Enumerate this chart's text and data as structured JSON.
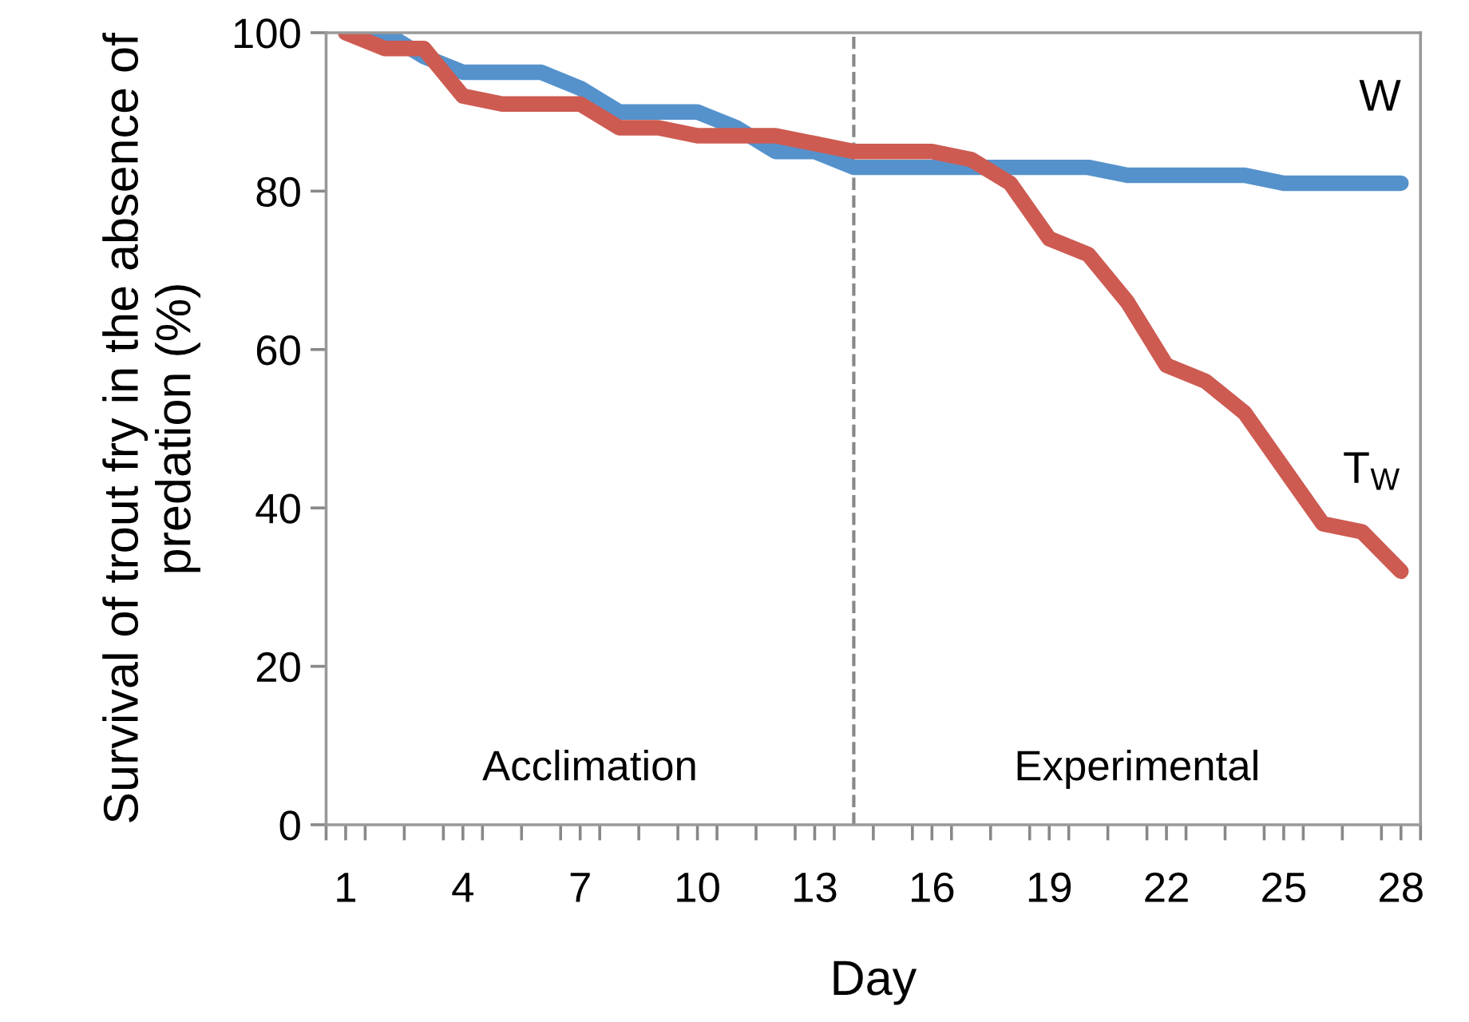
{
  "chart_data": {
    "type": "line",
    "xlabel": "Day",
    "ylabel": "Survival of trout fry in the absence of predation (%)",
    "x": [
      1,
      2,
      3,
      4,
      5,
      6,
      7,
      8,
      9,
      10,
      11,
      12,
      13,
      14,
      15,
      16,
      17,
      18,
      19,
      20,
      21,
      22,
      23,
      24,
      25,
      26,
      27,
      28
    ],
    "series": [
      {
        "name": "W",
        "color": "#5592cc",
        "values": [
          100,
          100,
          97,
          95,
          95,
          95,
          93,
          90,
          90,
          90,
          88,
          85,
          85,
          83,
          83,
          83,
          83,
          83,
          83,
          83,
          82,
          82,
          82,
          82,
          81,
          81,
          81,
          81
        ]
      },
      {
        "name": "T$_{W}$",
        "color": "#cd5b52",
        "values": [
          100,
          98,
          98,
          92,
          91,
          91,
          91,
          88,
          88,
          87,
          87,
          87,
          86,
          85,
          85,
          85,
          84,
          81,
          74,
          72,
          66,
          58,
          56,
          52,
          45,
          38,
          37,
          32
        ]
      }
    ],
    "xlim": [
      0.5,
      28.5
    ],
    "xticks": [
      {
        "value": 0.5,
        "label": null
      },
      1,
      {
        "value": 1.5,
        "label": null
      },
      {
        "value": 2.5,
        "label": null
      },
      {
        "value": 3.5,
        "label": null
      },
      4,
      {
        "value": 4.5,
        "label": null
      },
      {
        "value": 5.5,
        "label": null
      },
      {
        "value": 6.5,
        "label": null
      },
      7,
      {
        "value": 7.5,
        "label": null
      },
      {
        "value": 8.5,
        "label": null
      },
      {
        "value": 9.5,
        "label": null
      },
      10,
      {
        "value": 10.5,
        "label": null
      },
      {
        "value": 11.5,
        "label": null
      },
      {
        "value": 12.5,
        "label": null
      },
      13,
      {
        "value": 13.5,
        "label": null
      },
      {
        "value": 14.5,
        "label": null
      },
      {
        "value": 15.5,
        "label": null
      },
      16,
      {
        "value": 16.5,
        "label": null
      },
      {
        "value": 17.5,
        "label": null
      },
      {
        "value": 18.5,
        "label": null
      },
      19,
      {
        "value": 19.5,
        "label": null
      },
      {
        "value": 20.5,
        "label": null
      },
      {
        "value": 21.5,
        "label": null
      },
      22,
      {
        "value": 22.5,
        "label": null
      },
      {
        "value": 23.5,
        "label": null
      },
      {
        "value": 24.5,
        "label": null
      },
      25,
      {
        "value": 25.5,
        "label": null
      },
      {
        "value": 26.5,
        "label": null
      },
      {
        "value": 27.5,
        "label": null
      },
      28,
      {
        "value": 28.5,
        "label": null
      }
    ],
    "ylim": [
      0,
      100
    ],
    "yticks": [
      0,
      20,
      40,
      60,
      80,
      100
    ],
    "ref_lines": [
      {
        "axis": "x",
        "value": 14,
        "label": null,
        "color": "#888888",
        "line_style": "dashed"
      }
    ],
    "annotations": [
      "Acclimation",
      "Experimental"
    ],
    "grid": false,
    "legend": false,
    "marker": "none",
    "line_style": "solid"
  }
}
